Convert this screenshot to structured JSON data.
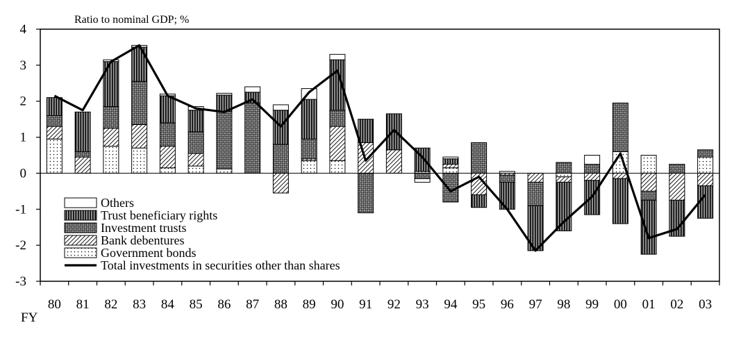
{
  "chart_data": {
    "type": "bar",
    "subtype": "stacked-bar-with-line",
    "unit_label": "Ratio to nominal GDP; %",
    "x_axis_label": "FY",
    "categories": [
      "80",
      "81",
      "82",
      "83",
      "84",
      "85",
      "86",
      "87",
      "88",
      "89",
      "90",
      "91",
      "92",
      "93",
      "94",
      "95",
      "96",
      "97",
      "98",
      "99",
      "00",
      "01",
      "02",
      "03"
    ],
    "ylim": [
      -3,
      4
    ],
    "yticks": [
      4,
      3,
      2,
      1,
      0,
      -1,
      -2,
      -3
    ],
    "grid": false,
    "legend_position": "bottom-left",
    "series": [
      {
        "name": "Government bonds",
        "pattern": "dots",
        "values": [
          0.95,
          0,
          0.75,
          0.7,
          0.15,
          0.2,
          0.12,
          0,
          0,
          0.35,
          0.35,
          0,
          0,
          0.05,
          0.15,
          0,
          0,
          0,
          -0.1,
          0,
          0.6,
          0.5,
          0,
          0.45
        ]
      },
      {
        "name": "Bank debentures",
        "pattern": "diagonal",
        "values": [
          0.35,
          0.45,
          0.5,
          0.65,
          0.6,
          0.35,
          0,
          0,
          -0.55,
          0.05,
          0.95,
          0.85,
          0.65,
          0,
          0.1,
          -0.6,
          -0.05,
          -0.25,
          -0.15,
          -0.2,
          -0.15,
          -0.5,
          -0.75,
          -0.35
        ]
      },
      {
        "name": "Investment trusts",
        "pattern": "crosshatch",
        "values": [
          0.3,
          0.15,
          0.6,
          1.2,
          0.65,
          0.6,
          1.6,
          1.95,
          0.8,
          0.55,
          0.45,
          -1.1,
          0,
          -0.15,
          -0.8,
          0.85,
          -0.2,
          -0.65,
          0.3,
          0.25,
          1.35,
          -0.25,
          0.25,
          0.2
        ]
      },
      {
        "name": "Trust beneficiary rights",
        "pattern": "vertical",
        "values": [
          0.5,
          1.1,
          1.25,
          0.95,
          0.75,
          0.6,
          0.45,
          0.3,
          0.95,
          1.1,
          1.4,
          0.65,
          1.0,
          0.65,
          0.15,
          -0.35,
          -0.75,
          -1.25,
          -1.35,
          -0.95,
          -1.25,
          -1.5,
          -1.0,
          -0.9
        ]
      },
      {
        "name": "Others",
        "pattern": "blank",
        "values": [
          0,
          0,
          0.05,
          0.05,
          0.05,
          0.1,
          0.05,
          0.15,
          0.15,
          0.3,
          0.15,
          0,
          0,
          -0.1,
          0.05,
          0,
          0.05,
          0,
          0,
          0.25,
          0,
          0,
          0,
          0
        ]
      }
    ],
    "line_series": {
      "name": "Total investments in securities other than shares",
      "values": [
        2.15,
        1.75,
        3.1,
        3.55,
        2.15,
        1.8,
        1.7,
        2.05,
        1.3,
        2.25,
        2.85,
        0.35,
        1.2,
        0.45,
        -0.5,
        -0.1,
        -1.0,
        -2.15,
        -1.35,
        -0.65,
        0.55,
        -1.8,
        -1.55,
        -0.6
      ]
    }
  }
}
